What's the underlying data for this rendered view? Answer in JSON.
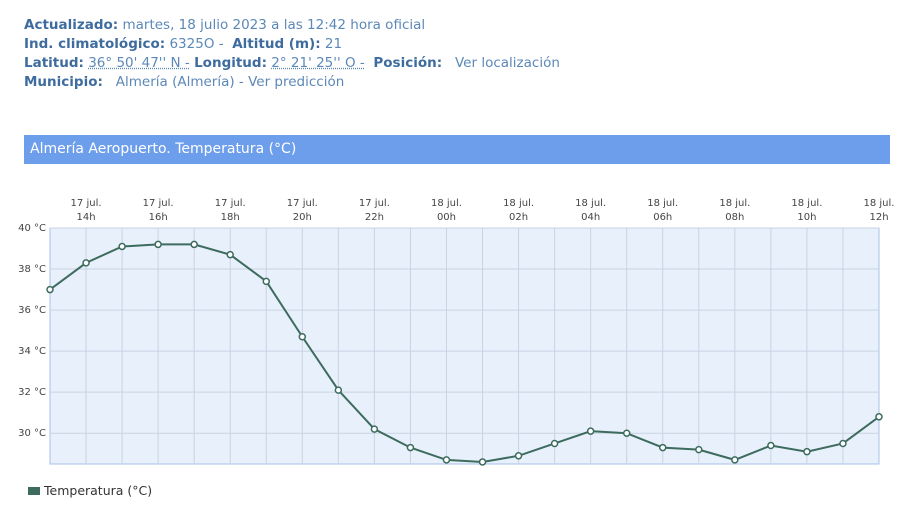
{
  "info": {
    "updated": {
      "label": "Actualizado:",
      "value": "martes, 18 julio 2023 a las 12:42 hora oficial"
    },
    "station": {
      "label": "Ind. climatológico:",
      "value": "6325O -"
    },
    "altitude": {
      "label": "Altitud (m):",
      "value": "21"
    },
    "latitude": {
      "label": "Latitud:",
      "value": "36° 50' 47'' N -"
    },
    "longitude": {
      "label": "Longitud:",
      "value": "2° 21' 25'' O -"
    },
    "position": {
      "label": "Posición:",
      "link": "Ver localización"
    },
    "municipality": {
      "label": "Municipio:",
      "value": "Almería (Almería) -",
      "link": "Ver predicción"
    }
  },
  "chart_data": {
    "type": "line",
    "title": "Almería Aeropuerto. Temperatura (°C)",
    "categories": [
      null,
      [
        "17 jul.",
        "14h"
      ],
      null,
      [
        "17 jul.",
        "16h"
      ],
      null,
      [
        "17 jul.",
        "18h"
      ],
      null,
      [
        "17 jul.",
        "20h"
      ],
      null,
      [
        "17 jul.",
        "22h"
      ],
      null,
      [
        "18 jul.",
        "00h"
      ],
      null,
      [
        "18 jul.",
        "02h"
      ],
      null,
      [
        "18 jul.",
        "04h"
      ],
      null,
      [
        "18 jul.",
        "06h"
      ],
      null,
      [
        "18 jul.",
        "08h"
      ],
      null,
      [
        "18 jul.",
        "10h"
      ],
      null,
      [
        "18 jul.",
        "12h"
      ]
    ],
    "series": [
      {
        "name": "Temperatura (°C)",
        "color": "#3d6b5e",
        "values": [
          37.0,
          38.3,
          39.1,
          39.2,
          39.2,
          38.7,
          37.4,
          34.7,
          32.1,
          30.2,
          29.3,
          28.7,
          28.6,
          28.9,
          29.5,
          30.1,
          30.0,
          29.3,
          29.2,
          28.7,
          29.4,
          29.1,
          29.5,
          30.8
        ]
      }
    ],
    "ylim": [
      28.5,
      40
    ],
    "yticks": [
      {
        "value": 30,
        "label": "30 °C"
      },
      {
        "value": 32,
        "label": "32 °C"
      },
      {
        "value": 34,
        "label": "34 °C"
      },
      {
        "value": 36,
        "label": "36 °C"
      },
      {
        "value": 38,
        "label": "38 °C"
      },
      {
        "value": 40,
        "label": "40 °C"
      }
    ],
    "grid": true,
    "legend": "bottom-left"
  }
}
